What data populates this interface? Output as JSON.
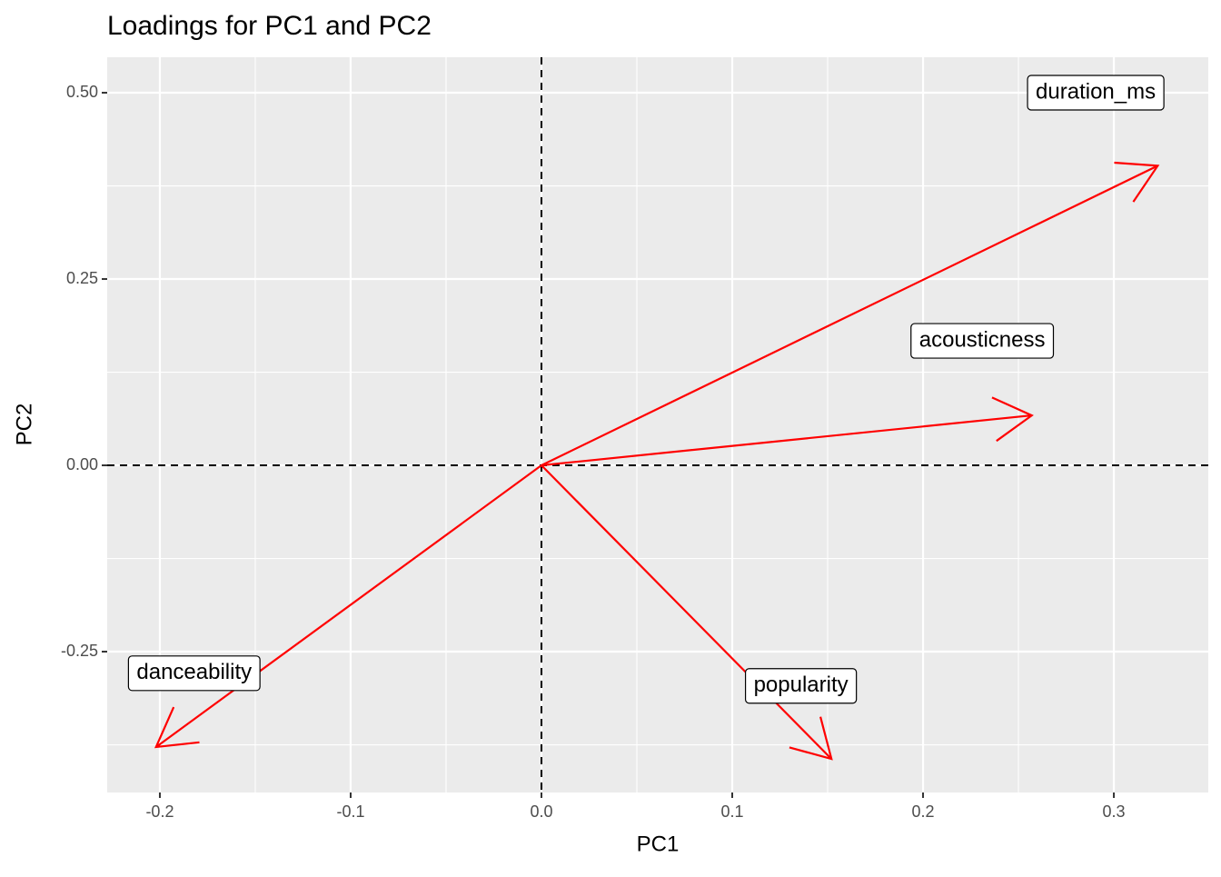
{
  "chart_data": {
    "type": "loadings",
    "title": "Loadings for PC1 and PC2",
    "x_label": "PC1",
    "y_label": "PC2",
    "xlim": [
      -0.2276,
      0.3495
    ],
    "ylim": [
      -0.439,
      0.5476
    ],
    "xticks": [
      {
        "value": -0.2,
        "label": "-0.2"
      },
      {
        "value": -0.1,
        "label": "-0.1"
      },
      {
        "value": 0,
        "label": "0.0"
      },
      0.1,
      0.2,
      0.3
    ],
    "yticks": [
      -0.25,
      {
        "value": 0,
        "label": "0.00"
      },
      0.25,
      {
        "value": 0.5,
        "label": "0.50"
      }
    ],
    "minor_xticks": [
      -0.15,
      -0.05,
      0.05,
      0.15,
      0.25
    ],
    "minor_yticks": [
      -0.375,
      -0.125,
      0.125,
      0.375
    ],
    "hline": 0,
    "vline": 0,
    "color": "#ff0000",
    "grid": true,
    "points": [
      {
        "name": "duration_ms",
        "x": 0.323,
        "y": 0.402,
        "label_x": 0.2905,
        "label_y": 0.5
      },
      {
        "name": "acousticness",
        "x": 0.257,
        "y": 0.067,
        "label_x": 0.231,
        "label_y": 0.167
      },
      {
        "name": "popularity",
        "x": 0.152,
        "y": -0.394,
        "label_x": 0.136,
        "label_y": -0.296
      },
      {
        "name": "danceability",
        "x": -0.202,
        "y": -0.378,
        "label_x": -0.182,
        "label_y": -0.279
      }
    ]
  }
}
